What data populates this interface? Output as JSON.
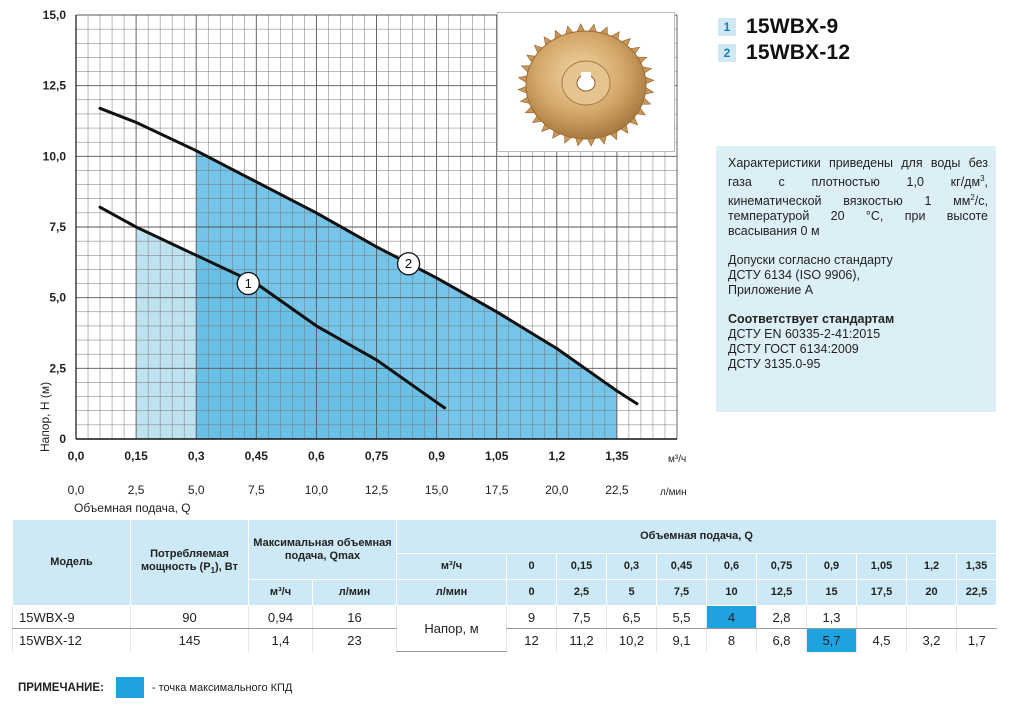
{
  "legend": {
    "items": [
      {
        "num": "1",
        "model": "15WBX-9"
      },
      {
        "num": "2",
        "model": "15WBX-12"
      }
    ]
  },
  "info": {
    "para1_a": "Характеристики приведены для воды без газа с плотностью 1,0 кг/дм",
    "para1_sup": "3",
    "para1_b": ", кинематической вязкостью 1 мм",
    "para1_sup2": "2",
    "para1_c": "/с, температурой 20 °С, при высоте всасывания 0 м",
    "para2": [
      "Допуски согласно стандарту",
      "ДСТУ 6134 (ISO 9906),",
      "Приложение А"
    ],
    "para3_title": "Соответствует стандартам",
    "para3": [
      "ДСТУ EN 60335-2-41:2015",
      "ДСТУ ГОСТ 6134:2009",
      "ДСТУ 3135.0-95"
    ]
  },
  "chart_data": {
    "type": "line",
    "ylabel": "Напор, H (м)",
    "xlabel": "Объемная подача, Q",
    "x_unit": "м³/ч",
    "x2_unit": "л/мин",
    "xlim": [
      0,
      1.5
    ],
    "ylim": [
      0,
      15
    ],
    "y_ticks": [
      "0",
      "2,5",
      "5,0",
      "7,5",
      "10,0",
      "12,5",
      "15,0"
    ],
    "x_ticks": [
      "0,0",
      "0,15",
      "0,3",
      "0,45",
      "0,6",
      "0,75",
      "0,9",
      "1,05",
      "1,2",
      "1,35"
    ],
    "x2_ticks": [
      "0,0",
      "2,5",
      "5,0",
      "7,5",
      "10,0",
      "12,5",
      "15,0",
      "17,5",
      "20,0",
      "22,5"
    ],
    "grid": true,
    "series": [
      {
        "name": "1",
        "points": [
          [
            0.06,
            8.2
          ],
          [
            0.15,
            7.5
          ],
          [
            0.3,
            6.5
          ],
          [
            0.45,
            5.5
          ],
          [
            0.6,
            4.0
          ],
          [
            0.75,
            2.8
          ],
          [
            0.9,
            1.3
          ],
          [
            0.92,
            1.1
          ]
        ],
        "work_range": [
          0.15,
          0.9
        ],
        "label_at": [
          0.43,
          5.5
        ],
        "color": "#111111"
      },
      {
        "name": "2",
        "points": [
          [
            0.06,
            11.7
          ],
          [
            0.15,
            11.2
          ],
          [
            0.3,
            10.2
          ],
          [
            0.45,
            9.1
          ],
          [
            0.6,
            8.0
          ],
          [
            0.75,
            6.8
          ],
          [
            0.9,
            5.7
          ],
          [
            1.05,
            4.5
          ],
          [
            1.2,
            3.2
          ],
          [
            1.35,
            1.7
          ],
          [
            1.4,
            1.25
          ]
        ],
        "work_range": [
          0.3,
          1.35
        ],
        "label_at": [
          0.83,
          6.2
        ],
        "color": "#111111"
      }
    ],
    "fill_colors": [
      "#bfe2f1",
      "#55b8e4"
    ]
  },
  "table": {
    "h_model": "Модель",
    "h_power": "Потребляемая мощность (P",
    "h_power_sub": "1",
    "h_power_unit": "), Вт",
    "h_qmax": "Максимальная объемная подача, Qmax",
    "h_flow": "Объемная подача, Q",
    "h_m3h": "м³/ч",
    "h_lmin": "л/мин",
    "q_m3h": [
      "0",
      "0,15",
      "0,3",
      "0,45",
      "0,6",
      "0,75",
      "0,9",
      "1,05",
      "1,2",
      "1,35"
    ],
    "q_lmin": [
      "0",
      "2,5",
      "5",
      "7,5",
      "10",
      "12,5",
      "15",
      "17,5",
      "20",
      "22,5"
    ],
    "head_label": "Напор, м",
    "rows": [
      {
        "model": "15WBX-9",
        "power": "90",
        "qmax_m3h": "0,94",
        "qmax_lmin": "16",
        "heads": [
          "9",
          "7,5",
          "6,5",
          "5,5",
          "4",
          "2,8",
          "1,3",
          "",
          "",
          ""
        ],
        "highlight": 4
      },
      {
        "model": "15WBX-12",
        "power": "145",
        "qmax_m3h": "1,4",
        "qmax_lmin": "23",
        "heads": [
          "12",
          "11,2",
          "10,2",
          "9,1",
          "8",
          "6,8",
          "5,7",
          "4,5",
          "3,2",
          "1,7"
        ],
        "highlight": 6
      }
    ]
  },
  "note": {
    "label": "ПРИМЕЧАНИЕ:",
    "text": "- точка максимального КПД",
    "color": "#1fa3e0"
  }
}
